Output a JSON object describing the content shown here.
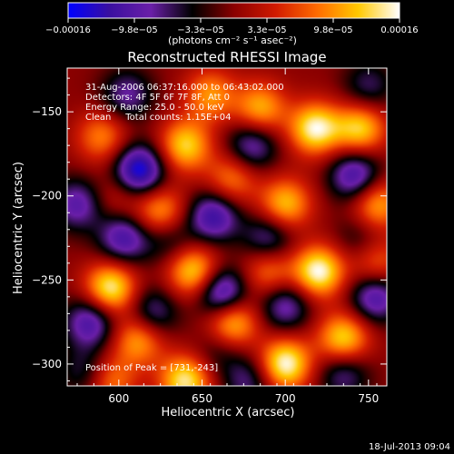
{
  "chart_data": {
    "type": "heatmap",
    "title": "Reconstructed RHESSI Image",
    "xlabel": "Heliocentric X (arcsec)",
    "ylabel": "Heliocentric Y (arcsec)",
    "xlim": [
      569,
      761
    ],
    "ylim": [
      -313,
      -124
    ],
    "x_ticks": [
      600,
      650,
      700,
      750
    ],
    "y_ticks": [
      -300,
      -250,
      -200,
      -150
    ],
    "x_tick_labels": [
      "600",
      "650",
      "700",
      "750"
    ],
    "y_tick_labels": [
      "−300",
      "−250",
      "−200",
      "−150"
    ],
    "colorbar": {
      "min": -0.00016,
      "max": 0.00016,
      "tick_labels": [
        "−0.00016",
        "−9.8e−05",
        "−3.3e−05",
        "3.3e−05",
        "9.8e−05",
        "0.00016"
      ],
      "unit_label": "(photons cm⁻² s⁻¹ asec⁻²)",
      "colormap": [
        "#0000ff",
        "#3a0fa0",
        "#6a1fa8",
        "#000000",
        "#8a0000",
        "#d01a00",
        "#ff6a00",
        "#ffc800",
        "#ffffff"
      ]
    },
    "annotations": [
      "31-Aug-2006 06:37:16.000 to 06:43:02.000",
      "Detectors: 4F 5F 6F 7F 8F, Att 0",
      "Energy Range: 25.0 - 50.0 keV",
      "Clean     Total counts: 1.15E+04"
    ],
    "peak_label": "Position of Peak = [731,-243]",
    "peak": [
      731,
      -243
    ],
    "sources": [
      {
        "x": 700,
        "y": -300,
        "amp": 1.0
      },
      {
        "x": 640,
        "y": -310,
        "amp": 0.9
      },
      {
        "x": 595,
        "y": -310,
        "amp": 0.55
      },
      {
        "x": 668,
        "y": -275,
        "amp": 0.85
      },
      {
        "x": 612,
        "y": -285,
        "amp": 0.7
      },
      {
        "x": 645,
        "y": -245,
        "amp": 0.85
      },
      {
        "x": 595,
        "y": -255,
        "amp": 0.95
      },
      {
        "x": 735,
        "y": -285,
        "amp": 0.85
      },
      {
        "x": 720,
        "y": -245,
        "amp": 1.0
      },
      {
        "x": 755,
        "y": -240,
        "amp": 0.5
      },
      {
        "x": 690,
        "y": -245,
        "amp": 0.55
      },
      {
        "x": 700,
        "y": -205,
        "amp": 0.75
      },
      {
        "x": 755,
        "y": -205,
        "amp": 0.7
      },
      {
        "x": 668,
        "y": -190,
        "amp": 0.55
      },
      {
        "x": 625,
        "y": -210,
        "amp": 0.7
      },
      {
        "x": 640,
        "y": -170,
        "amp": 0.8
      },
      {
        "x": 718,
        "y": -160,
        "amp": 0.95
      },
      {
        "x": 745,
        "y": -160,
        "amp": 0.8
      },
      {
        "x": 590,
        "y": -165,
        "amp": 0.55
      },
      {
        "x": 685,
        "y": -148,
        "amp": 0.7
      },
      {
        "x": 655,
        "y": -140,
        "amp": 0.6
      },
      {
        "x": 600,
        "y": -200,
        "amp": 0.3
      },
      {
        "x": 612,
        "y": -185,
        "amp": -1.0
      },
      {
        "x": 603,
        "y": -225,
        "amp": -0.7
      },
      {
        "x": 583,
        "y": -275,
        "amp": -0.7
      },
      {
        "x": 620,
        "y": -270,
        "amp": -0.55
      },
      {
        "x": 662,
        "y": -258,
        "amp": -0.9
      },
      {
        "x": 657,
        "y": -212,
        "amp": -0.75
      },
      {
        "x": 690,
        "y": -225,
        "amp": -0.55
      },
      {
        "x": 700,
        "y": -265,
        "amp": -0.6
      },
      {
        "x": 742,
        "y": -188,
        "amp": -0.75
      },
      {
        "x": 754,
        "y": -260,
        "amp": -0.7
      },
      {
        "x": 735,
        "y": -305,
        "amp": -0.5
      },
      {
        "x": 680,
        "y": -170,
        "amp": -0.6
      },
      {
        "x": 605,
        "y": -140,
        "amp": -0.5
      },
      {
        "x": 575,
        "y": -205,
        "amp": -0.6
      },
      {
        "x": 678,
        "y": -310,
        "amp": -0.45
      },
      {
        "x": 750,
        "y": -135,
        "amp": -0.4
      },
      {
        "x": 580,
        "y": -305,
        "amp": -0.4
      },
      {
        "x": 630,
        "y": -225,
        "amp": -0.4
      },
      {
        "x": 660,
        "y": -292,
        "amp": -0.3
      },
      {
        "x": 745,
        "y": -225,
        "amp": -0.3
      }
    ]
  },
  "footer_timestamp": "18-Jul-2013 09:04"
}
